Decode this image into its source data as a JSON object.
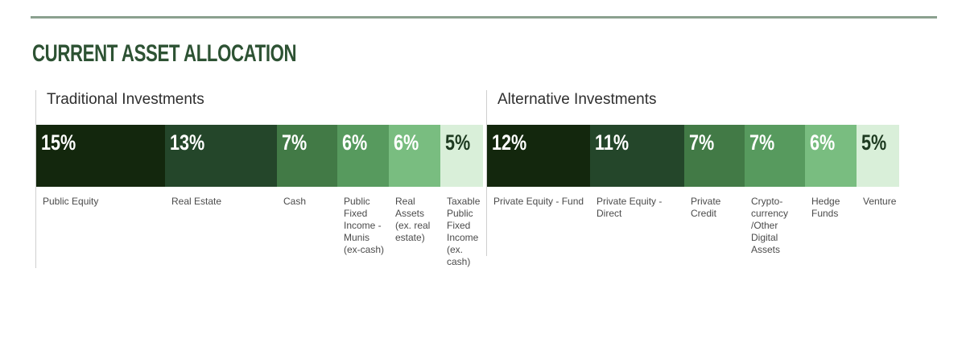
{
  "page": {
    "title": "CURRENT ASSET ALLOCATION"
  },
  "colors": {
    "title_text": "#2d5233",
    "top_divider": "#8ba18f",
    "section_line": "#cfcfcf",
    "section_header_text": "#2f2f2f",
    "segment_label_text": "#4b4b4b"
  },
  "chart_data": [
    {
      "type": "bar",
      "title": "Traditional Investments",
      "unit": "%",
      "segments": [
        {
          "label": "Public Equity",
          "value": 15,
          "color": "#13270d",
          "text_color": "#ffffff"
        },
        {
          "label": "Real Estate",
          "value": 13,
          "color": "#24462a",
          "text_color": "#ffffff"
        },
        {
          "label": "Cash",
          "value": 7,
          "color": "#427a46",
          "text_color": "#ffffff"
        },
        {
          "label": "Public Fixed Income - Munis (ex-cash)",
          "value": 6,
          "color": "#579a5e",
          "text_color": "#ffffff"
        },
        {
          "label": "Real Assets (ex. real estate)",
          "value": 6,
          "color": "#79bd80",
          "text_color": "#ffffff"
        },
        {
          "label": "Taxable Public Fixed Income (ex. cash)",
          "value": 5,
          "color": "#d9efd9",
          "text_color": "#1d3a20"
        }
      ]
    },
    {
      "type": "bar",
      "title": "Alternative Investments",
      "unit": "%",
      "segments": [
        {
          "label": "Private Equity - Fund",
          "value": 12,
          "color": "#13270d",
          "text_color": "#ffffff"
        },
        {
          "label": "Private Equity - Direct",
          "value": 11,
          "color": "#24462a",
          "text_color": "#ffffff"
        },
        {
          "label": "Private Credit",
          "value": 7,
          "color": "#427a46",
          "text_color": "#ffffff"
        },
        {
          "label": "Crypto-currency /Other Digital Assets",
          "value": 7,
          "color": "#579a5e",
          "text_color": "#ffffff"
        },
        {
          "label": "Hedge Funds",
          "value": 6,
          "color": "#79bd80",
          "text_color": "#ffffff"
        },
        {
          "label": "Venture",
          "value": 5,
          "color": "#d9efd9",
          "text_color": "#1d3a20"
        }
      ]
    }
  ]
}
